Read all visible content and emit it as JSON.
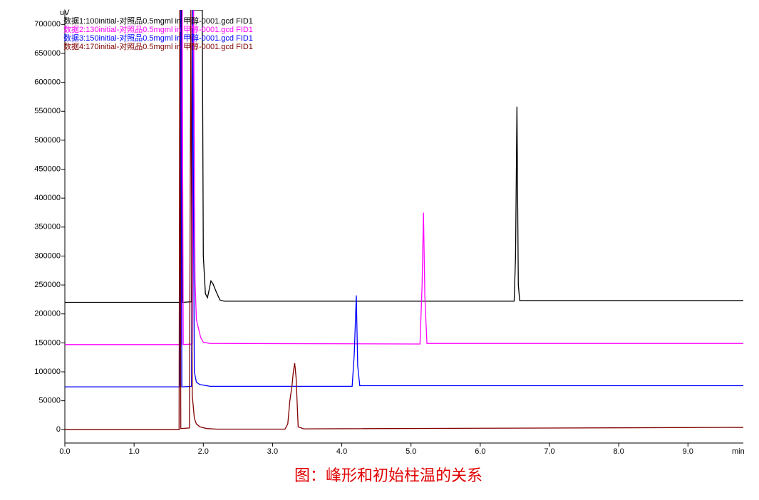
{
  "chart_data": {
    "type": "line",
    "y_label": "uV",
    "x_label": "min",
    "caption": "图：峰形和初始柱温的关系",
    "xlim": [
      0,
      9.8
    ],
    "ylim": [
      -23000,
      725000
    ],
    "xticks": [
      {
        "value": 0,
        "label": "0.0"
      },
      {
        "value": 1,
        "label": "1.0"
      },
      {
        "value": 2,
        "label": "2.0"
      },
      {
        "value": 3,
        "label": "3.0"
      },
      {
        "value": 4,
        "label": "4.0"
      },
      {
        "value": 5,
        "label": "5.0"
      },
      {
        "value": 6,
        "label": "6.0"
      },
      {
        "value": 7,
        "label": "7.0"
      },
      {
        "value": 8,
        "label": "8.0"
      },
      {
        "value": 9,
        "label": "9.0"
      }
    ],
    "yticks": [
      0,
      50000,
      100000,
      150000,
      200000,
      250000,
      300000,
      350000,
      400000,
      450000,
      500000,
      550000,
      600000,
      650000,
      700000
    ],
    "series": [
      {
        "name": "数据1:100initial-对照品0.5mgml in 甲醇-0001.gcd FID1",
        "color": "#000000",
        "x": [
          0,
          1.67,
          1.685,
          1.7,
          1.83,
          1.845,
          1.86,
          1.88,
          1.97,
          1.985,
          2.0,
          2.03,
          2.06,
          2.09,
          2.11,
          2.14,
          2.18,
          2.21,
          2.24,
          2.3,
          6.49,
          6.51,
          6.53,
          6.55,
          6.57,
          9.8
        ],
        "values": [
          220000,
          220000,
          725000,
          220000,
          221000,
          725000,
          725000,
          725000,
          725000,
          725000,
          300000,
          235000,
          228000,
          245000,
          257000,
          252000,
          240000,
          232000,
          224000,
          222000,
          222000,
          300000,
          558000,
          250000,
          223000,
          223000
        ]
      },
      {
        "name": "数据2:130initial-对照品0.5mgml in 甲醇-0001.gcd FID1",
        "color": "#ff00ff",
        "x": [
          0,
          1.68,
          1.695,
          1.71,
          1.84,
          1.86,
          1.88,
          1.9,
          1.93,
          1.96,
          2.0,
          2.1,
          5.13,
          5.16,
          5.18,
          5.2,
          5.23,
          9.8
        ],
        "values": [
          147000,
          147000,
          725000,
          147000,
          148000,
          725000,
          260000,
          190000,
          175000,
          160000,
          151000,
          149000,
          148000,
          250000,
          375000,
          230000,
          149000,
          149000
        ]
      },
      {
        "name": "数据3:150initial-对照品0.5mgml in 甲醇-0001.gcd FID1",
        "color": "#0000ff",
        "x": [
          0,
          1.66,
          1.675,
          1.69,
          1.83,
          1.845,
          1.87,
          1.9,
          1.95,
          2.0,
          2.1,
          4.15,
          4.18,
          4.21,
          4.23,
          4.26,
          9.8
        ],
        "values": [
          74000,
          74000,
          725000,
          74000,
          75000,
          725000,
          100000,
          82000,
          78000,
          77000,
          75000,
          75000,
          130000,
          232000,
          110000,
          76000,
          76000
        ]
      },
      {
        "name": "数据4:170initial-对照品0.5mgml in 甲醇-0001.gcd FID1",
        "color": "#800000",
        "x": [
          0,
          1.65,
          1.66,
          1.675,
          1.8,
          1.82,
          1.84,
          1.87,
          1.9,
          1.95,
          2.05,
          2.2,
          3.18,
          3.22,
          3.25,
          3.28,
          3.3,
          3.32,
          3.34,
          3.37,
          3.45,
          9.8
        ],
        "values": [
          0,
          0,
          725000,
          2000,
          3000,
          725000,
          60000,
          20000,
          10000,
          5000,
          2000,
          1000,
          1000,
          10000,
          50000,
          75000,
          100000,
          115000,
          90000,
          5000,
          1500,
          4000
        ]
      }
    ]
  }
}
